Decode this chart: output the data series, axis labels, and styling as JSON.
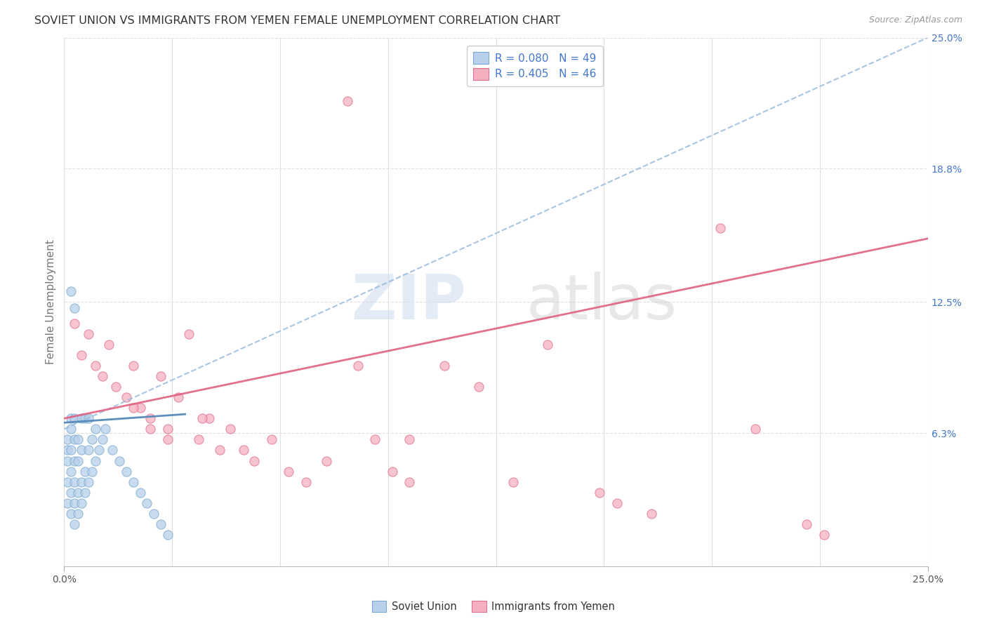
{
  "title": "SOVIET UNION VS IMMIGRANTS FROM YEMEN FEMALE UNEMPLOYMENT CORRELATION CHART",
  "source": "Source: ZipAtlas.com",
  "ylabel": "Female Unemployment",
  "xlim": [
    0,
    0.25
  ],
  "ylim": [
    0,
    0.25
  ],
  "ytick_values_right": [
    0.063,
    0.125,
    0.188,
    0.25
  ],
  "ytick_labels_right": [
    "6.3%",
    "12.5%",
    "18.8%",
    "25.0%"
  ],
  "soviet_R": 0.08,
  "soviet_N": 49,
  "yemen_R": 0.405,
  "yemen_N": 46,
  "soviet_color": "#b8d0ea",
  "soviet_edge_color": "#7aaacf",
  "soviet_line_color": "#5588bb",
  "yemen_color": "#f5b0c0",
  "yemen_edge_color": "#e07090",
  "yemen_line_color": "#e06080",
  "bg_color": "#ffffff",
  "grid_color": "#e0e0e0",
  "title_color": "#333333",
  "source_color": "#999999",
  "axis_label_color": "#777777",
  "right_tick_color": "#4477cc",
  "bottom_tick_color": "#555555",
  "soviet_x": [
    0.001,
    0.001,
    0.001,
    0.001,
    0.001,
    0.002,
    0.002,
    0.002,
    0.002,
    0.002,
    0.002,
    0.003,
    0.003,
    0.003,
    0.003,
    0.003,
    0.003,
    0.004,
    0.004,
    0.004,
    0.004,
    0.005,
    0.005,
    0.005,
    0.005,
    0.006,
    0.006,
    0.006,
    0.007,
    0.007,
    0.007,
    0.008,
    0.008,
    0.009,
    0.009,
    0.01,
    0.011,
    0.012,
    0.014,
    0.016,
    0.018,
    0.02,
    0.022,
    0.024,
    0.026,
    0.028,
    0.03,
    0.003,
    0.002
  ],
  "soviet_y": [
    0.03,
    0.04,
    0.05,
    0.055,
    0.06,
    0.025,
    0.035,
    0.045,
    0.055,
    0.065,
    0.07,
    0.02,
    0.03,
    0.04,
    0.05,
    0.06,
    0.07,
    0.025,
    0.035,
    0.05,
    0.06,
    0.03,
    0.04,
    0.055,
    0.07,
    0.035,
    0.045,
    0.07,
    0.04,
    0.055,
    0.07,
    0.045,
    0.06,
    0.05,
    0.065,
    0.055,
    0.06,
    0.065,
    0.055,
    0.05,
    0.045,
    0.04,
    0.035,
    0.03,
    0.025,
    0.02,
    0.015,
    0.122,
    0.13
  ],
  "yemen_x": [
    0.003,
    0.005,
    0.007,
    0.009,
    0.011,
    0.013,
    0.015,
    0.018,
    0.02,
    0.022,
    0.025,
    0.028,
    0.03,
    0.033,
    0.036,
    0.039,
    0.042,
    0.045,
    0.048,
    0.052,
    0.055,
    0.06,
    0.065,
    0.07,
    0.076,
    0.082,
    0.09,
    0.095,
    0.1,
    0.11,
    0.12,
    0.13,
    0.14,
    0.155,
    0.16,
    0.17,
    0.19,
    0.2,
    0.215,
    0.22,
    0.02,
    0.025,
    0.03,
    0.04,
    0.085,
    0.1
  ],
  "yemen_y": [
    0.115,
    0.1,
    0.11,
    0.095,
    0.09,
    0.105,
    0.085,
    0.08,
    0.095,
    0.075,
    0.07,
    0.09,
    0.065,
    0.08,
    0.11,
    0.06,
    0.07,
    0.055,
    0.065,
    0.055,
    0.05,
    0.06,
    0.045,
    0.04,
    0.05,
    0.22,
    0.06,
    0.045,
    0.04,
    0.095,
    0.085,
    0.04,
    0.105,
    0.035,
    0.03,
    0.025,
    0.16,
    0.065,
    0.02,
    0.015,
    0.075,
    0.065,
    0.06,
    0.07,
    0.095,
    0.06
  ]
}
